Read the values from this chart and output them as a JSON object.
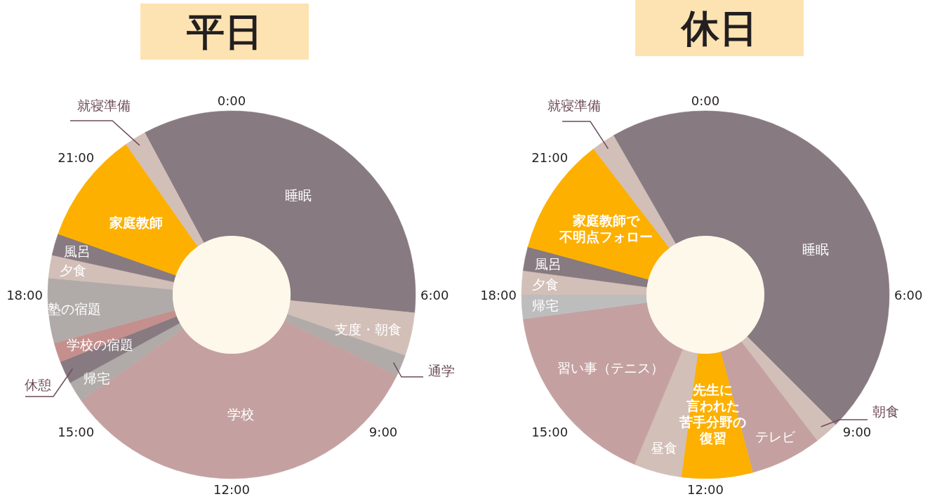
{
  "chart_data": [
    {
      "type": "donut",
      "title": "平日",
      "categories": [
        "睡眠",
        "支度・朝食",
        "通学",
        "学校",
        "帰宅",
        "休憩",
        "学校の宿題",
        "塾の宿題",
        "夕食",
        "風呂",
        "家庭教師",
        "就寝準備"
      ],
      "values": [
        34.4,
        3.8,
        1.9,
        33.0,
        1.8,
        2.0,
        1.7,
        5.7,
        2.0,
        1.9,
        9.9,
        1.9
      ],
      "colors": [
        "#877a80",
        "#d2bfb8",
        "#b0aba8",
        "#c4a1a0",
        "#b0aba8",
        "#877a80",
        "#c48f8d",
        "#b0aba8",
        "#d2bfb8",
        "#877a80",
        "#fdb000",
        "#d2bfb8"
      ],
      "annotations": [
        "0:00",
        "6:00",
        "9:00",
        "12:00",
        "15:00",
        "18:00",
        "21:00"
      ]
    },
    {
      "type": "donut",
      "title": "休日",
      "categories": [
        "睡眠",
        "朝食",
        "テレビ",
        "先生に言われた苦手分野の復習",
        "昼食",
        "習い事（テニス）",
        "帰宅",
        "夕食",
        "風呂",
        "家庭教師で不明点フォロー",
        "就寝準備",
        null
      ],
      "values": [
        37.5,
        2.1,
        6.25,
        6.25,
        4.2,
        16.6,
        2.1,
        2.1,
        2.1,
        10.4,
        2.1,
        8.3
      ],
      "colors": [
        "#877a80",
        "#d2bfb8",
        "#c4a1a0",
        "#fdb000",
        "#d2bfb8",
        "#c4a1a0",
        "#bdbdbd",
        "#d2bfb8",
        "#877a80",
        "#fdb000",
        "#d2bfb8",
        "#877a80"
      ],
      "annotations": [
        "0:00",
        "6:00",
        "9:00",
        "12:00",
        "15:00",
        "18:00",
        "21:00"
      ]
    }
  ]
}
